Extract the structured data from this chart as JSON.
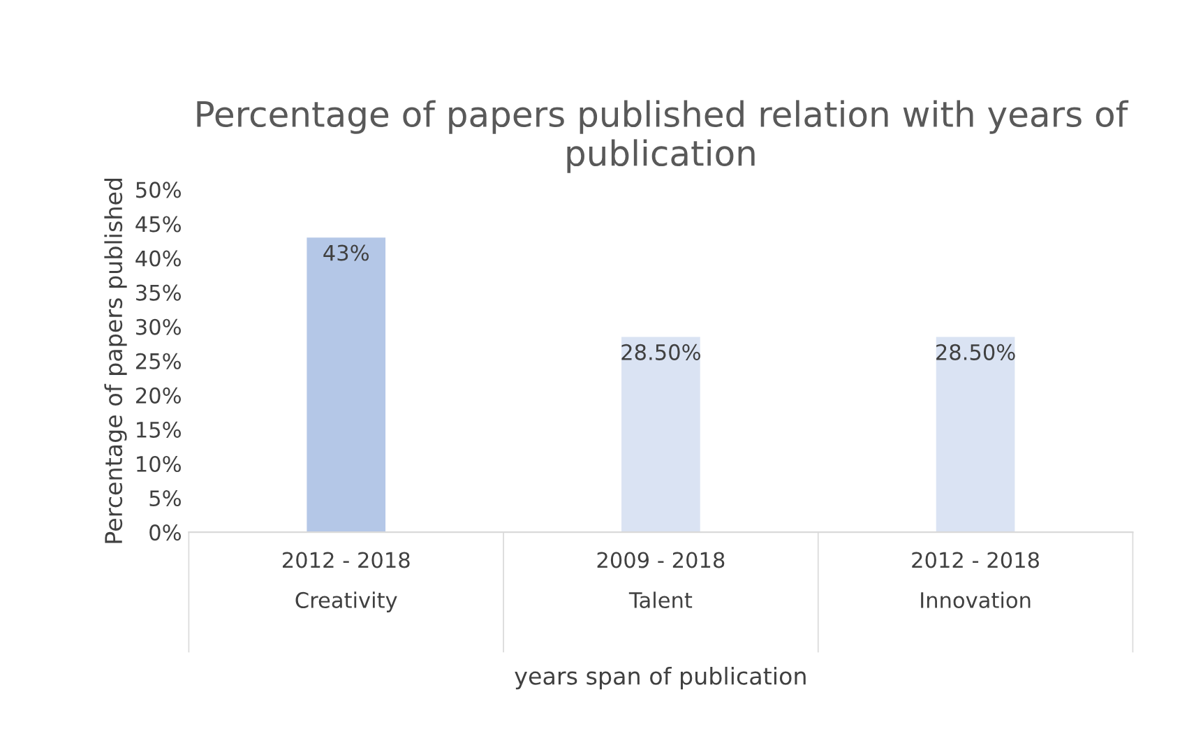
{
  "chart_data": {
    "type": "bar",
    "title": "Percentage of papers published relation with years of publication",
    "xlabel": "years span of publication",
    "ylabel": "Percentage of papers published",
    "categories": [
      "2012 - 2018\nCreativity",
      "2009 - 2018\nTalent",
      "2012 - 2018\nInnovation"
    ],
    "values": [
      43,
      28.5,
      28.5
    ],
    "colors": [
      "#b4c7e7",
      "#dae3f3",
      "#dae3f3"
    ],
    "value_labels": [
      "43%",
      "28.50%",
      "28.50%"
    ],
    "ylim": [
      0,
      50
    ],
    "yticks": [
      {
        "value": 0,
        "label": "0%"
      },
      {
        "value": 5,
        "label": "5%"
      },
      {
        "value": 10,
        "label": "10%"
      },
      {
        "value": 15,
        "label": "15%"
      },
      {
        "value": 20,
        "label": "20%"
      },
      {
        "value": 25,
        "label": "25%"
      },
      {
        "value": 30,
        "label": "30%"
      },
      {
        "value": 35,
        "label": "35%"
      },
      {
        "value": 40,
        "label": "40%"
      },
      {
        "value": 45,
        "label": "45%"
      },
      {
        "value": 50,
        "label": "50%"
      }
    ],
    "grid": false,
    "legend": false
  }
}
